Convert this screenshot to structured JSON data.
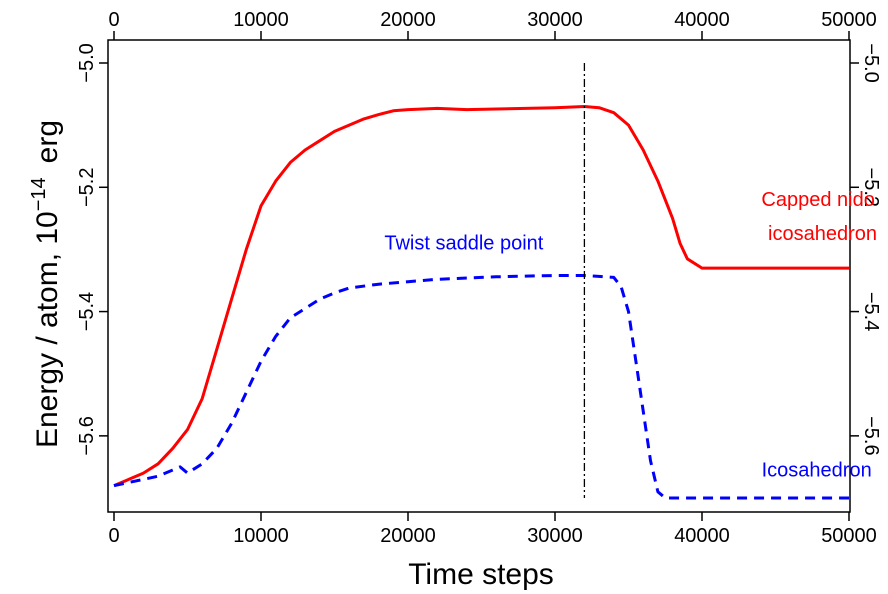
{
  "chart_data": {
    "type": "line",
    "title": "",
    "xlabel": "Time steps",
    "ylabel": "Energy / atom, 10",
    "ylabel_exponent": "−14",
    "ylabel_unit": "erg",
    "xlim": [
      0,
      50000
    ],
    "ylim": [
      -5.7,
      -5.0
    ],
    "x_ticks": [
      0,
      10000,
      20000,
      30000,
      40000,
      50000
    ],
    "x_tick_labels": [
      "0",
      "10000",
      "20000",
      "30000",
      "40000",
      "50000"
    ],
    "y_ticks": [
      -5.0,
      -5.2,
      -5.4,
      -5.6
    ],
    "y_tick_labels": [
      "−5.0",
      "−5.2",
      "−5.4",
      "−5.6"
    ],
    "grid": false,
    "series": [
      {
        "color": "#ff0000",
        "style": "solid",
        "x": [
          0,
          1000,
          2000,
          3000,
          4000,
          5000,
          6000,
          7000,
          8000,
          9000,
          10000,
          11000,
          12000,
          13000,
          14000,
          15000,
          16000,
          17000,
          18000,
          19000,
          20000,
          22000,
          24000,
          26000,
          28000,
          30000,
          32000,
          33000,
          34000,
          35000,
          36000,
          37000,
          38000,
          38500,
          39000,
          40000,
          42000,
          45000,
          48000,
          50000
        ],
        "y": [
          -5.68,
          -5.67,
          -5.66,
          -5.645,
          -5.62,
          -5.59,
          -5.54,
          -5.46,
          -5.38,
          -5.3,
          -5.23,
          -5.19,
          -5.16,
          -5.14,
          -5.125,
          -5.11,
          -5.1,
          -5.09,
          -5.083,
          -5.077,
          -5.075,
          -5.073,
          -5.075,
          -5.074,
          -5.073,
          -5.072,
          -5.07,
          -5.072,
          -5.08,
          -5.1,
          -5.14,
          -5.19,
          -5.25,
          -5.29,
          -5.315,
          -5.33,
          -5.33,
          -5.33,
          -5.33,
          -5.33
        ]
      },
      {
        "color": "#0000ff",
        "style": "dashed",
        "x": [
          0,
          2000,
          3000,
          4000,
          4500,
          5000,
          6000,
          7000,
          8000,
          9000,
          10000,
          11000,
          12000,
          13000,
          14000,
          15000,
          16000,
          18000,
          20000,
          22000,
          24000,
          26000,
          28000,
          30000,
          32000,
          34000,
          34500,
          35000,
          35500,
          36000,
          36500,
          37000,
          37500,
          38000,
          40000,
          45000,
          50000
        ],
        "y": [
          -5.68,
          -5.67,
          -5.665,
          -5.655,
          -5.65,
          -5.66,
          -5.645,
          -5.62,
          -5.58,
          -5.53,
          -5.48,
          -5.44,
          -5.41,
          -5.395,
          -5.38,
          -5.37,
          -5.362,
          -5.356,
          -5.352,
          -5.348,
          -5.346,
          -5.344,
          -5.343,
          -5.342,
          -5.342,
          -5.345,
          -5.36,
          -5.4,
          -5.48,
          -5.56,
          -5.64,
          -5.69,
          -5.7,
          -5.7,
          -5.7,
          -5.7,
          -5.7
        ]
      }
    ],
    "vline": {
      "x": 32000,
      "style": "dash-dot",
      "color": "#000000"
    },
    "annotations": [
      {
        "text": "Capped nido",
        "x": 47900,
        "y": -5.23,
        "color": "#ff0000"
      },
      {
        "text": "icosahedron",
        "x": 48200,
        "y": -5.285,
        "color": "#ff0000"
      },
      {
        "text": "Twist saddle point",
        "x": 23800,
        "y": -5.3,
        "color": "#0000ff"
      },
      {
        "text": "Icosahedron",
        "x": 47800,
        "y": -5.665,
        "color": "#0000ff"
      }
    ]
  }
}
